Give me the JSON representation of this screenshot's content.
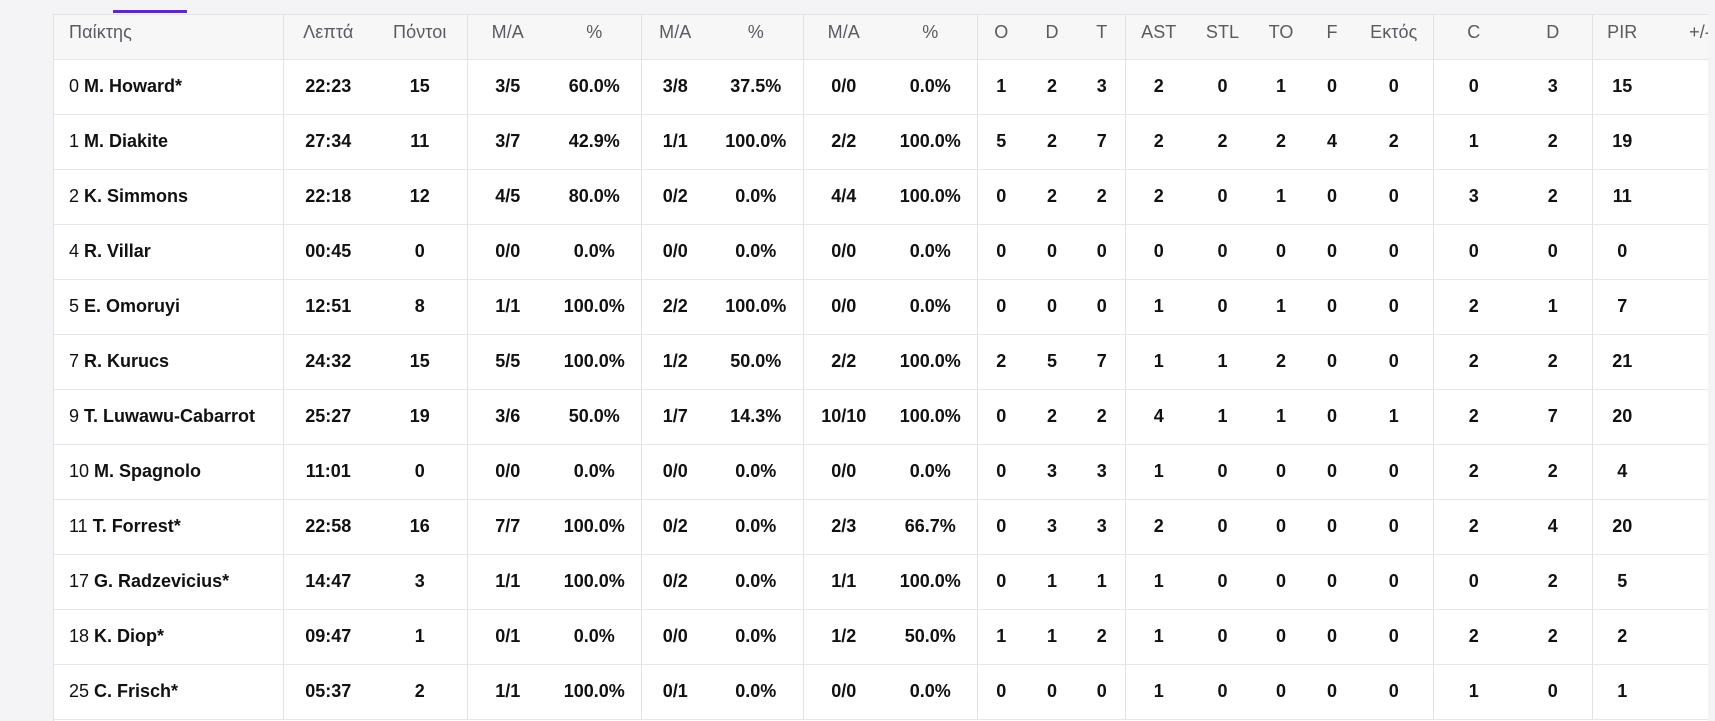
{
  "columns": [
    "Παίκτης",
    "Λεπτά",
    "Πόντοι",
    "M/A",
    "%",
    "M/A",
    "%",
    "M/A",
    "%",
    "O",
    "D",
    "T",
    "AST",
    "STL",
    "TO",
    "F",
    "Εκτός",
    "C",
    "D",
    "PIR",
    "+/-"
  ],
  "players": [
    {
      "num": "0",
      "name": "M. Howard*",
      "stats": [
        "22:23",
        "15",
        "3/5",
        "60.0%",
        "3/8",
        "37.5%",
        "0/0",
        "0.0%",
        "1",
        "2",
        "3",
        "2",
        "0",
        "1",
        "0",
        "0",
        "0",
        "3",
        "15",
        ""
      ]
    },
    {
      "num": "1",
      "name": "M. Diakite",
      "stats": [
        "27:34",
        "11",
        "3/7",
        "42.9%",
        "1/1",
        "100.0%",
        "2/2",
        "100.0%",
        "5",
        "2",
        "7",
        "2",
        "2",
        "2",
        "4",
        "2",
        "1",
        "2",
        "19",
        ""
      ]
    },
    {
      "num": "2",
      "name": "K. Simmons",
      "stats": [
        "22:18",
        "12",
        "4/5",
        "80.0%",
        "0/2",
        "0.0%",
        "4/4",
        "100.0%",
        "0",
        "2",
        "2",
        "2",
        "0",
        "1",
        "0",
        "0",
        "3",
        "2",
        "11",
        ""
      ]
    },
    {
      "num": "4",
      "name": "R. Villar",
      "stats": [
        "00:45",
        "0",
        "0/0",
        "0.0%",
        "0/0",
        "0.0%",
        "0/0",
        "0.0%",
        "0",
        "0",
        "0",
        "0",
        "0",
        "0",
        "0",
        "0",
        "0",
        "0",
        "0",
        ""
      ]
    },
    {
      "num": "5",
      "name": "E. Omoruyi",
      "stats": [
        "12:51",
        "8",
        "1/1",
        "100.0%",
        "2/2",
        "100.0%",
        "0/0",
        "0.0%",
        "0",
        "0",
        "0",
        "1",
        "0",
        "1",
        "0",
        "0",
        "2",
        "1",
        "7",
        ""
      ]
    },
    {
      "num": "7",
      "name": "R. Kurucs",
      "stats": [
        "24:32",
        "15",
        "5/5",
        "100.0%",
        "1/2",
        "50.0%",
        "2/2",
        "100.0%",
        "2",
        "5",
        "7",
        "1",
        "1",
        "2",
        "0",
        "0",
        "2",
        "2",
        "21",
        ""
      ]
    },
    {
      "num": "9",
      "name": "T. Luwawu-Cabarrot",
      "stats": [
        "25:27",
        "19",
        "3/6",
        "50.0%",
        "1/7",
        "14.3%",
        "10/10",
        "100.0%",
        "0",
        "2",
        "2",
        "4",
        "1",
        "1",
        "0",
        "1",
        "2",
        "7",
        "20",
        ""
      ]
    },
    {
      "num": "10",
      "name": "M. Spagnolo",
      "stats": [
        "11:01",
        "0",
        "0/0",
        "0.0%",
        "0/0",
        "0.0%",
        "0/0",
        "0.0%",
        "0",
        "3",
        "3",
        "1",
        "0",
        "0",
        "0",
        "0",
        "2",
        "2",
        "4",
        ""
      ]
    },
    {
      "num": "11",
      "name": "T. Forrest*",
      "stats": [
        "22:58",
        "16",
        "7/7",
        "100.0%",
        "0/2",
        "0.0%",
        "2/3",
        "66.7%",
        "0",
        "3",
        "3",
        "2",
        "0",
        "0",
        "0",
        "0",
        "2",
        "4",
        "20",
        ""
      ]
    },
    {
      "num": "17",
      "name": "G. Radzevicius*",
      "stats": [
        "14:47",
        "3",
        "1/1",
        "100.0%",
        "0/2",
        "0.0%",
        "1/1",
        "100.0%",
        "0",
        "1",
        "1",
        "1",
        "0",
        "0",
        "0",
        "0",
        "0",
        "2",
        "5",
        ""
      ]
    },
    {
      "num": "18",
      "name": "K. Diop*",
      "stats": [
        "09:47",
        "1",
        "0/1",
        "0.0%",
        "0/0",
        "0.0%",
        "1/2",
        "50.0%",
        "1",
        "1",
        "2",
        "1",
        "0",
        "0",
        "0",
        "0",
        "2",
        "2",
        "2",
        ""
      ]
    },
    {
      "num": "25",
      "name": "C. Frisch*",
      "stats": [
        "05:37",
        "2",
        "1/1",
        "100.0%",
        "0/1",
        "0.0%",
        "0/0",
        "0.0%",
        "0",
        "0",
        "0",
        "1",
        "0",
        "0",
        "0",
        "0",
        "1",
        "0",
        "1",
        ""
      ]
    }
  ],
  "colors": {
    "accent": "#5b2bbf",
    "header_bg": "#f7f7f8",
    "border": "#e6e6ea"
  }
}
